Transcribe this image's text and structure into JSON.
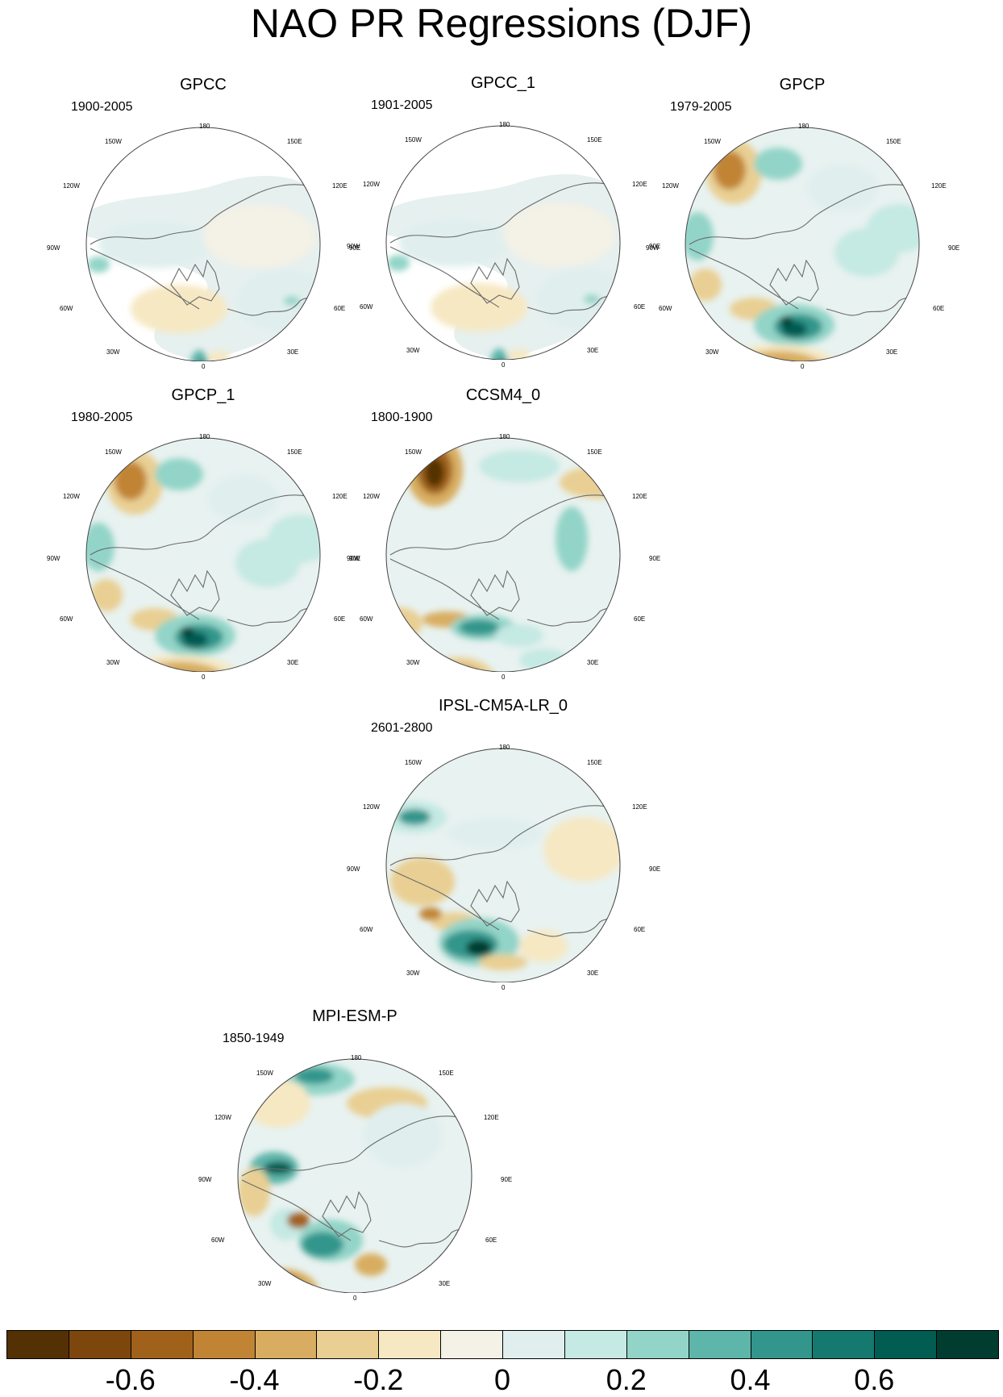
{
  "title": "NAO PR Regressions (DJF)",
  "panels": [
    {
      "name": "GPCC",
      "period": "1900-2005",
      "type": "obs-gpcc"
    },
    {
      "name": "GPCC_1",
      "period": "1901-2005",
      "type": "obs-gpcc"
    },
    {
      "name": "GPCP",
      "period": "1979-2005",
      "type": "gpcp"
    },
    {
      "name": "GPCP_1",
      "period": "1980-2005",
      "type": "gpcp"
    },
    {
      "name": "CCSM4_0",
      "period": "1800-1900",
      "type": "ccsm"
    },
    {
      "name": "IPSL-CM5A-LR_0",
      "period": "2601-2800",
      "type": "ipsl"
    },
    {
      "name": "MPI-ESM-P",
      "period": "1850-1949",
      "type": "mpi"
    }
  ],
  "longitude_labels": {
    "top": "180",
    "lon150w": "150W",
    "lon150e": "150E",
    "lon120w": "120W",
    "lon120e": "120E",
    "lon90w": "90W",
    "lon90e": "90E",
    "lon60w": "60W",
    "lon60e": "60E",
    "lon30w": "30W",
    "lon30e": "30E",
    "bottom": "0"
  },
  "colorbar": {
    "colors": [
      "#543005",
      "#7d460d",
      "#a0621b",
      "#c18434",
      "#d8ad61",
      "#e9cf93",
      "#f6e8c3",
      "#f4f1e6",
      "#e0efee",
      "#c5e9e3",
      "#93d4c8",
      "#5eb5aa",
      "#33968c",
      "#15796f",
      "#015c52",
      "#003c30"
    ],
    "tick_labels": [
      "-0.6",
      "-0.4",
      "-0.2",
      "0",
      "0.2",
      "0.4",
      "0.6"
    ]
  }
}
